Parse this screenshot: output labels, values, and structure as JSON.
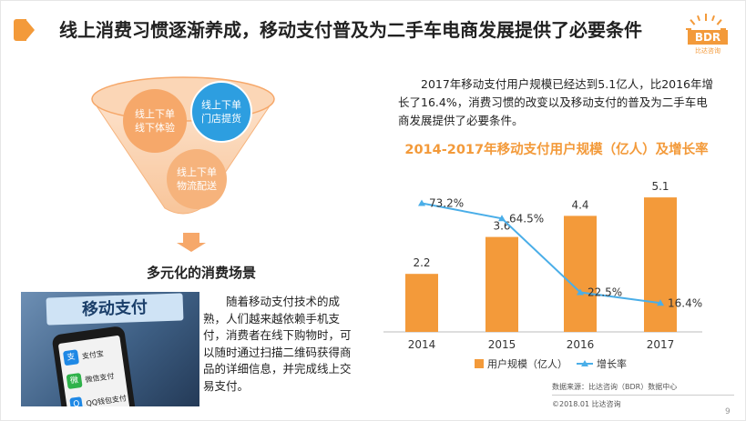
{
  "header": {
    "title": "线上消费习惯逐渐养成，移动支付普及为二手车电商发展提供了必要条件",
    "logo_text": "BDR",
    "logo_sub": "比达咨询"
  },
  "funnel": {
    "circles": [
      {
        "line1": "线上下单",
        "line2": "线下体验"
      },
      {
        "line1": "线上下单",
        "line2": "门店提货"
      },
      {
        "line1": "线上下单",
        "line2": "物流配送"
      }
    ],
    "scene_label": "多元化的消费场景"
  },
  "photo": {
    "banner": "移动支付",
    "apps": [
      {
        "name": "支付宝",
        "icon": "支",
        "color": "#1e88e5"
      },
      {
        "name": "微信支付",
        "icon": "微",
        "color": "#2fb24a"
      },
      {
        "name": "QQ钱包支付",
        "icon": "Q",
        "color": "#1e88e5"
      }
    ]
  },
  "left_paragraph": "随着移动支付技术的成熟，人们越来越依赖手机支付，消费者在线下购物时，可以随时通过扫描二维码获得商品的详细信息，并完成线上交易支付。",
  "right_paragraph": "2017年移动支付用户规模已经达到5.1亿人，比2016年增长了16.4%，消费习惯的改变以及移动支付的普及为二手车电商发展提供了必要条件。",
  "colors": {
    "accent": "#f39a3a",
    "line": "#4aaee8"
  },
  "chart_data": {
    "type": "bar",
    "title": "2014-2017年移动支付用户规模（亿人）及增长率",
    "categories": [
      "2014",
      "2015",
      "2016",
      "2017"
    ],
    "series": [
      {
        "name": "用户规模（亿人）",
        "values": [
          2.2,
          3.6,
          4.4,
          5.1
        ],
        "labels": [
          "2.2",
          "3.6",
          "4.4",
          "5.1"
        ],
        "color": "#f39a3a",
        "kind": "bar"
      },
      {
        "name": "增长率",
        "values": [
          73.2,
          64.5,
          22.5,
          16.4
        ],
        "labels": [
          "73.2%",
          "64.5%",
          "22.5%",
          "16.4%"
        ],
        "color": "#4aaee8",
        "kind": "line"
      }
    ],
    "ylim_bar": [
      0,
      6
    ],
    "ylim_line": [
      0,
      90
    ],
    "legend_placement": "bottom"
  },
  "source": "数据来源：比达咨询（BDR）数据中心",
  "copyright": "©2018.01  比达咨询",
  "page_number": "9"
}
